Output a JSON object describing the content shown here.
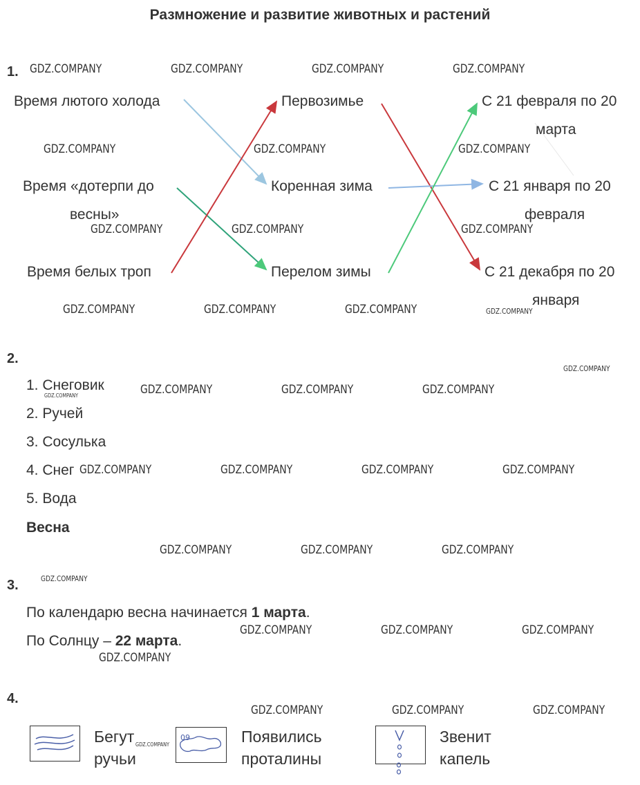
{
  "title": "Размножение и развитие животных и растений",
  "watermark": "GDZ.COMPANY",
  "task1": {
    "number": "1.",
    "left": [
      "Время лютого холода",
      "Время «дотерпи до",
      "весны»",
      "Время белых троп"
    ],
    "middle": [
      "Первозимье",
      "Коренная зима",
      "Перелом зимы"
    ],
    "right": [
      "С 21 февраля по 20",
      "марта",
      "С 21 января по 20",
      "февраля",
      "С 21 декабря по 20",
      "января"
    ],
    "colors": {
      "blue": "#9cc6e0",
      "red": "#c9383c",
      "green": "#4cc97a",
      "light_blue": "#8fb6e3"
    }
  },
  "task2": {
    "number": "2.",
    "items": [
      "1. Снеговик",
      "2. Ручей",
      "3. Сосулька",
      "4. Снег",
      "5. Вода"
    ],
    "answer": "Весна"
  },
  "task3": {
    "number": "3.",
    "line1_prefix": "По календарю весна начинается ",
    "line1_bold": "1 марта",
    "line1_suffix": ".",
    "line2_prefix": "По Солнцу – ",
    "line2_bold": "22 марта",
    "line2_suffix": "."
  },
  "task4": {
    "number": "4.",
    "cards": [
      {
        "line1": "Бегут",
        "line2": "ручьи",
        "icon": "streams-icon"
      },
      {
        "line1": "Появились",
        "line2": "проталины",
        "icon": "thawed-patches-icon"
      },
      {
        "line1": "Звенит",
        "line2": "капель",
        "icon": "dripping-icon"
      }
    ],
    "icon_text": "09"
  }
}
